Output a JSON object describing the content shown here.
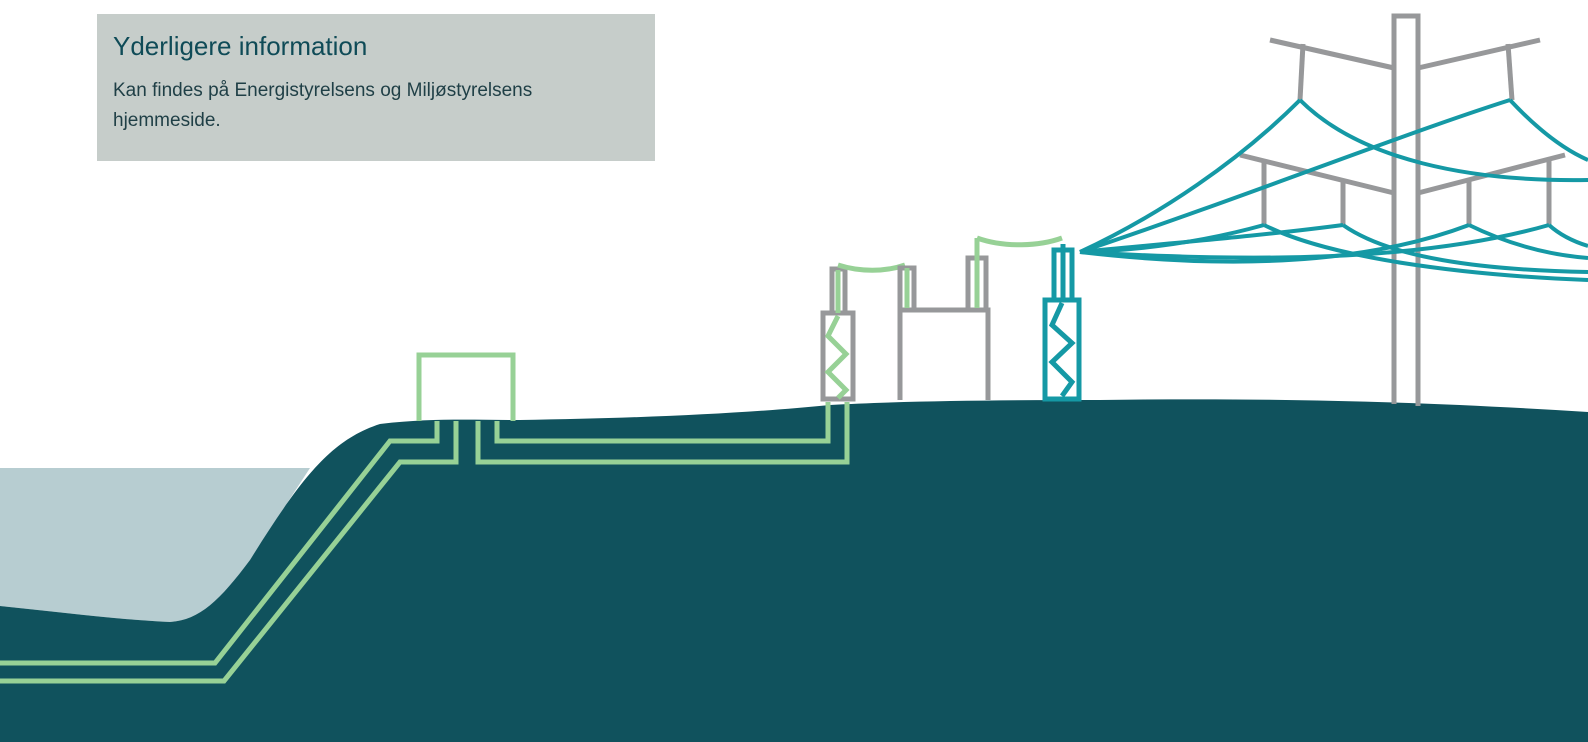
{
  "info": {
    "title": "Yderligere information",
    "body": "Kan findes på Energistyrelsens og Miljøstyrelsens hjemmeside."
  },
  "colors": {
    "land": "#10525d",
    "sea": "#b7cdd1",
    "info_box": "#c6cdca",
    "cable_green": "#97d196",
    "line_teal": "#1599a5",
    "structure_grey": "#97989a"
  },
  "icons": [
    "offshore-station-icon",
    "cable-icon",
    "substation-icon",
    "pylon-icon",
    "overhead-line-icon"
  ]
}
